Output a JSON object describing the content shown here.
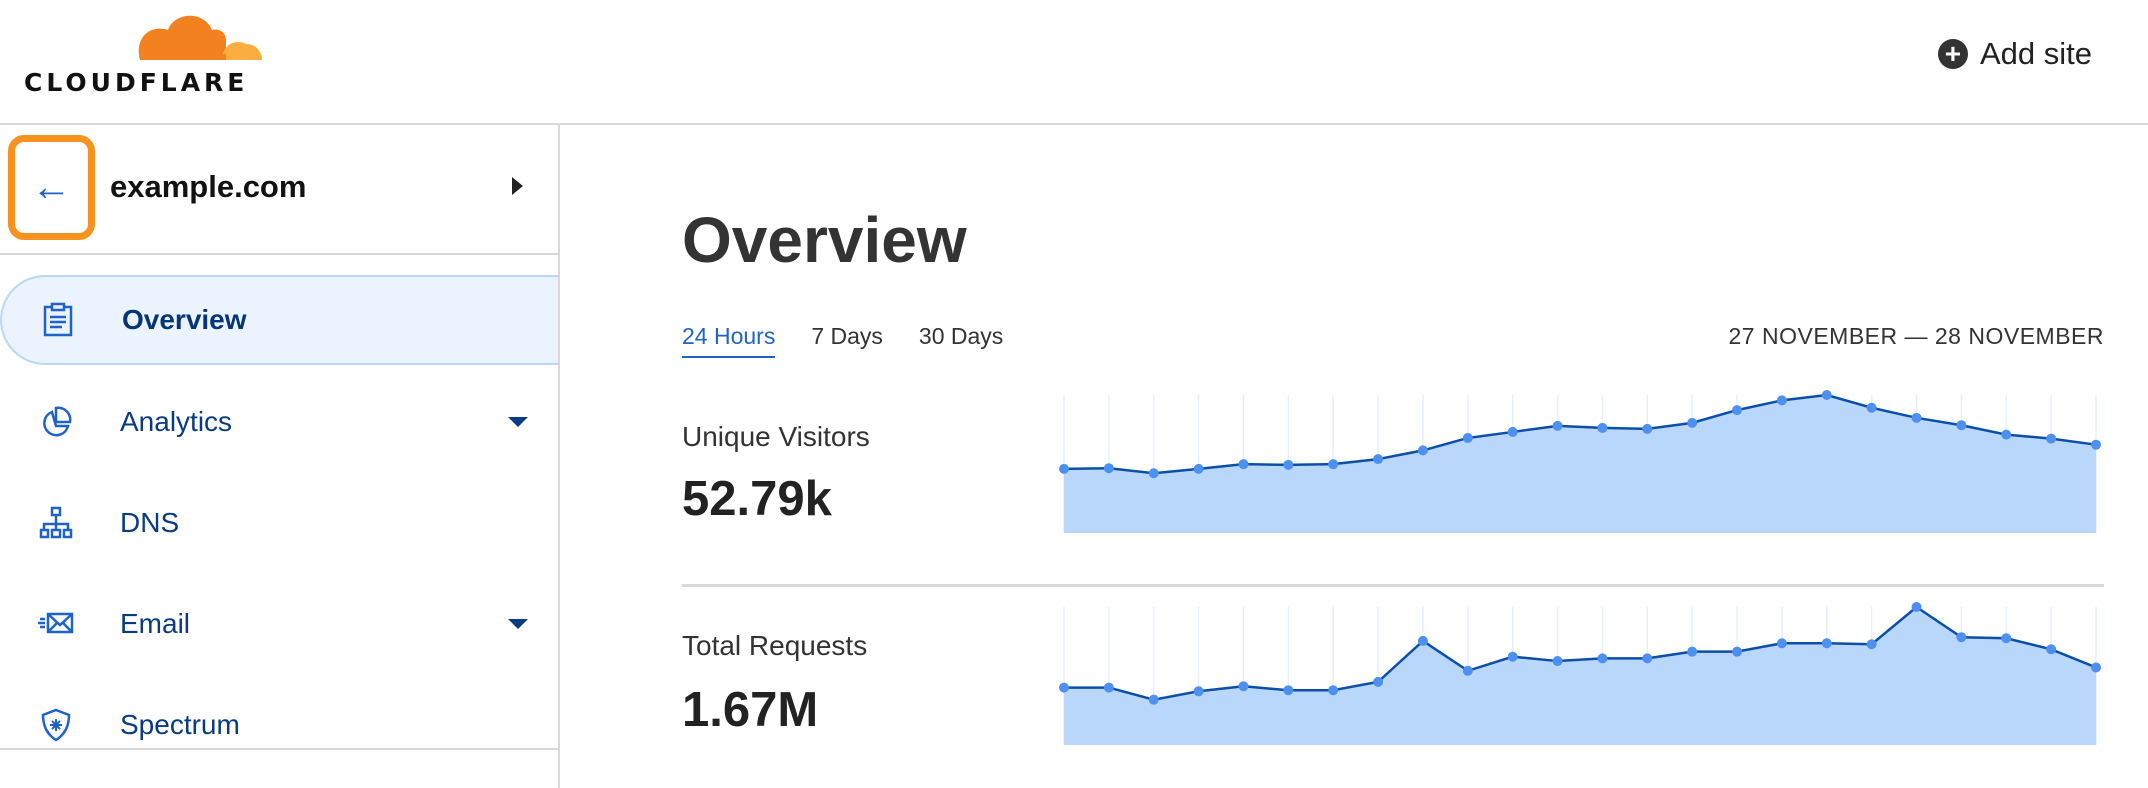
{
  "header": {
    "brand": "CLOUDFLARE",
    "add_site_label": "Add site",
    "add_site_icon": "plus-circle-icon"
  },
  "sidebar": {
    "domain": "example.com",
    "back_icon": "arrow-left-icon",
    "items": [
      {
        "label": "Overview",
        "icon": "clipboard-icon",
        "active": true,
        "expandable": false
      },
      {
        "label": "Analytics",
        "icon": "pie-chart-icon",
        "active": false,
        "expandable": true
      },
      {
        "label": "DNS",
        "icon": "network-icon",
        "active": false,
        "expandable": false
      },
      {
        "label": "Email",
        "icon": "envelope-icon",
        "active": false,
        "expandable": true
      },
      {
        "label": "Spectrum",
        "icon": "shield-icon",
        "active": false,
        "expandable": false
      }
    ]
  },
  "main": {
    "title": "Overview",
    "tabs": [
      {
        "label": "24 Hours",
        "active": true
      },
      {
        "label": "7 Days",
        "active": false
      },
      {
        "label": "30 Days",
        "active": false
      }
    ],
    "date_range": "27 NOVEMBER — 28 NOVEMBER",
    "metrics": [
      {
        "label": "Unique Visitors",
        "value": "52.79k"
      },
      {
        "label": "Total Requests",
        "value": "1.67M"
      }
    ]
  },
  "colors": {
    "accent": "#1f63c6",
    "highlight": "#f6921e",
    "fill": "#b9d6fb",
    "line": "#0b4fa8",
    "point": "#4d90f0"
  },
  "chart_data": [
    {
      "type": "area",
      "series": [
        {
          "values": [
            191,
            193,
            178,
            191,
            205,
            203,
            205,
            220,
            246,
            283,
            301,
            319,
            313,
            310,
            328,
            366,
            395,
            411,
            373,
            343,
            321,
            293,
            281,
            263
          ]
        }
      ],
      "ylim": [
        0,
        411
      ],
      "grid": "vertical"
    },
    {
      "type": "area",
      "series": [
        {
          "values": [
            171,
            171,
            135,
            160,
            175,
            163,
            163,
            188,
            310,
            221,
            263,
            250,
            258,
            258,
            278,
            278,
            303,
            303,
            300,
            411,
            321,
            318,
            285,
            231
          ]
        }
      ],
      "ylim": [
        0,
        411
      ],
      "grid": "vertical"
    }
  ]
}
